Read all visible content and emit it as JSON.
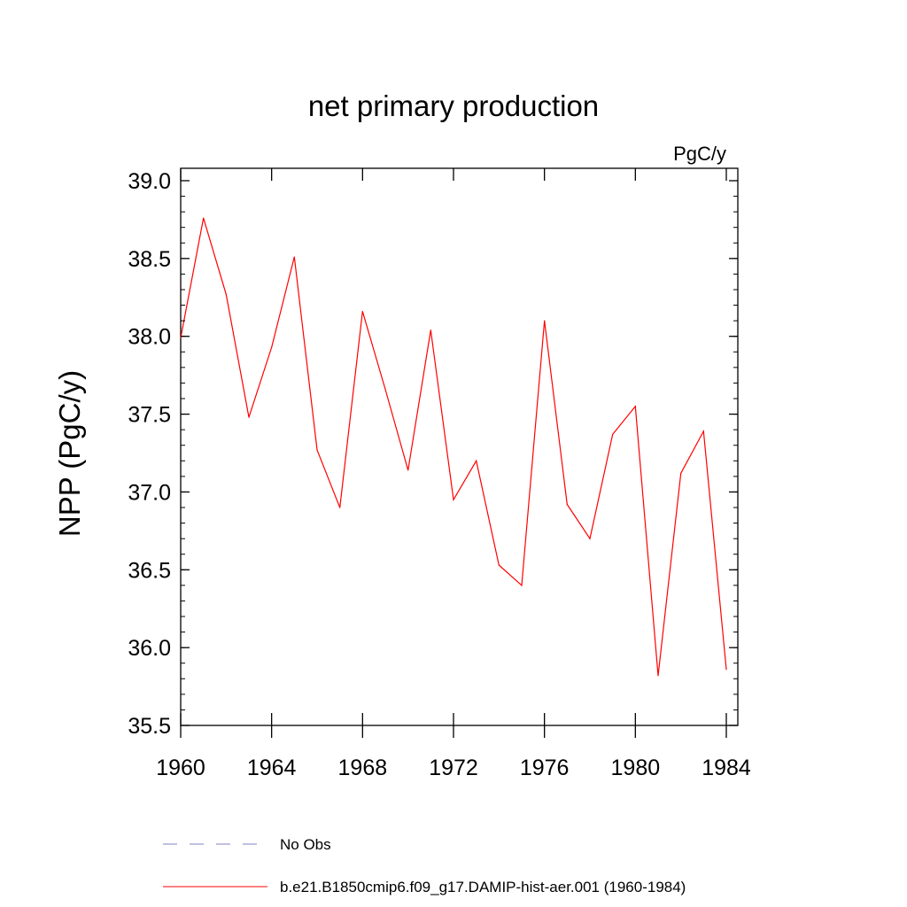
{
  "chart_data": {
    "type": "line",
    "title": "net primary production",
    "units_label": "PgC/y",
    "ylabel": "NPP  (PgC/y)",
    "xlabel": "",
    "xlim": [
      1960,
      1984
    ],
    "ylim": [
      35.5,
      39.0
    ],
    "x_ticks": [
      1960,
      1964,
      1968,
      1972,
      1976,
      1980,
      1984
    ],
    "x_tick_labels": [
      "1960",
      "1964",
      "1968",
      "1972",
      "1976",
      "1980",
      "1984"
    ],
    "y_ticks": [
      35.5,
      36.0,
      36.5,
      37.0,
      37.5,
      38.0,
      38.5,
      39.0
    ],
    "y_tick_labels": [
      "35.5",
      "36.0",
      "36.5",
      "37.0",
      "37.5",
      "38.0",
      "38.5",
      "39.0"
    ],
    "grid": false,
    "legend_position": "bottom",
    "series": [
      {
        "name": "No Obs",
        "color": "#8080c0",
        "style": "dashed",
        "x": [],
        "y": []
      },
      {
        "name": "b.e21.B1850cmip6.f09_g17.DAMIP-hist-aer.001 (1960-1984)",
        "color": "#ff0000",
        "style": "solid",
        "x": [
          1960,
          1961,
          1962,
          1963,
          1964,
          1965,
          1966,
          1967,
          1968,
          1969,
          1970,
          1971,
          1972,
          1973,
          1974,
          1975,
          1976,
          1977,
          1978,
          1979,
          1980,
          1981,
          1982,
          1983,
          1984
        ],
        "y": [
          37.99,
          38.76,
          38.27,
          37.48,
          37.93,
          38.51,
          37.27,
          36.9,
          38.16,
          37.66,
          37.14,
          38.04,
          36.95,
          37.2,
          36.53,
          36.4,
          38.1,
          36.92,
          36.7,
          37.37,
          37.55,
          35.82,
          37.12,
          37.39,
          35.86
        ]
      }
    ]
  }
}
